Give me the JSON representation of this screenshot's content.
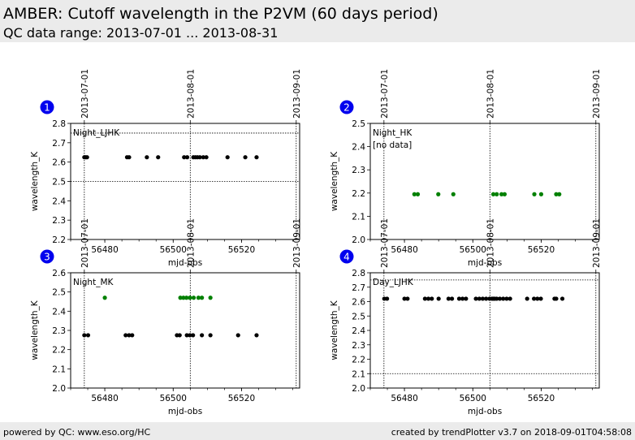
{
  "header": {
    "title": "AMBER: Cutoff wavelength in the P2VM (60 days period)",
    "subtitle": "QC data range: 2013-07-01 ... 2013-08-31"
  },
  "footer": {
    "left": "powered by QC: www.eso.org/HC",
    "right": "created by trendPlotter v3.7 on 2018-09-01T04:58:08"
  },
  "colors": {
    "black_series": "#000000",
    "green_series": "#008000",
    "badge": "#0000ee",
    "header_bg": "#ebebeb"
  },
  "chart_data": [
    {
      "type": "scatter",
      "badge": "1",
      "label": "Night_LJHK",
      "note": "",
      "xlabel": "mjd-obs",
      "ylabel": "wavelength_K",
      "xlim": [
        56470,
        56537
      ],
      "ylim": [
        2.2,
        2.8
      ],
      "xticks": [
        56480,
        56500,
        56520
      ],
      "yticks": [
        2.2,
        2.3,
        2.4,
        2.5,
        2.6,
        2.7,
        2.8
      ],
      "ref_lines": [
        2.5,
        2.75
      ],
      "date_ticks": [
        {
          "mjd": 56474,
          "label": "2013-07-01"
        },
        {
          "mjd": 56505,
          "label": "2013-08-01"
        },
        {
          "mjd": 56536,
          "label": "2013-09-01"
        }
      ],
      "series": [
        {
          "color": "#000000",
          "x": [
            56474.0,
            56474.4,
            56474.8,
            56486.5,
            56487.1,
            56492.3,
            56495.6,
            56503.2,
            56504.1,
            56505.9,
            56506.5,
            56507.1,
            56507.8,
            56508.8,
            56509.7,
            56515.9,
            56521.1,
            56524.4
          ],
          "y": [
            2.625,
            2.625,
            2.625,
            2.625,
            2.625,
            2.625,
            2.625,
            2.625,
            2.625,
            2.625,
            2.625,
            2.625,
            2.625,
            2.625,
            2.625,
            2.625,
            2.625,
            2.625
          ]
        }
      ]
    },
    {
      "type": "scatter",
      "badge": "2",
      "label": "Night_HK",
      "note": "[no data]",
      "xlabel": "mjd-obs",
      "ylabel": "wavelength_K",
      "xlim": [
        56470,
        56537
      ],
      "ylim": [
        2.0,
        2.5
      ],
      "xticks": [
        56480,
        56500,
        56520
      ],
      "yticks": [
        2.0,
        2.1,
        2.2,
        2.3,
        2.4,
        2.5
      ],
      "ref_lines": [],
      "date_ticks": [
        {
          "mjd": 56474,
          "label": "2013-07-01"
        },
        {
          "mjd": 56505,
          "label": "2013-08-01"
        },
        {
          "mjd": 56536,
          "label": "2013-09-01"
        }
      ],
      "series": [
        {
          "color": "#008000",
          "x": [
            56482.9,
            56483.9,
            56489.9,
            56494.3,
            56506.0,
            56507.0,
            56508.4,
            56509.3,
            56518.0,
            56520.0,
            56524.4,
            56525.3
          ],
          "y": [
            2.195,
            2.195,
            2.195,
            2.195,
            2.195,
            2.195,
            2.195,
            2.195,
            2.195,
            2.195,
            2.195,
            2.195
          ]
        }
      ]
    },
    {
      "type": "scatter",
      "badge": "3",
      "label": "Night_MK",
      "note": "",
      "xlabel": "mjd-obs",
      "ylabel": "wavelength_K",
      "xlim": [
        56470,
        56537
      ],
      "ylim": [
        2.0,
        2.6
      ],
      "xticks": [
        56480,
        56500,
        56520
      ],
      "yticks": [
        2.0,
        2.1,
        2.2,
        2.3,
        2.4,
        2.5,
        2.6
      ],
      "ref_lines": [],
      "date_ticks": [
        {
          "mjd": 56474,
          "label": "2013-07-01"
        },
        {
          "mjd": 56505,
          "label": "2013-08-01"
        },
        {
          "mjd": 56536,
          "label": "2013-09-01"
        }
      ],
      "series": [
        {
          "color": "#000000",
          "x": [
            56474.0,
            56475.1,
            56486.1,
            56487.1,
            56488.0,
            56501.1,
            56501.9,
            56504.0,
            56504.9,
            56505.8,
            56508.4,
            56510.9,
            56519.0,
            56524.4
          ],
          "y": [
            2.275,
            2.275,
            2.275,
            2.275,
            2.275,
            2.275,
            2.275,
            2.275,
            2.275,
            2.275,
            2.275,
            2.275,
            2.275,
            2.275
          ]
        },
        {
          "color": "#008000",
          "x": [
            56480.0,
            56502.1,
            56503.0,
            56503.9,
            56504.9,
            56506.0,
            56507.4,
            56508.4,
            56510.9
          ],
          "y": [
            2.47,
            2.47,
            2.47,
            2.47,
            2.47,
            2.47,
            2.47,
            2.47,
            2.47
          ]
        }
      ]
    },
    {
      "type": "scatter",
      "badge": "4",
      "label": "Day_LJHK",
      "note": "",
      "xlabel": "mjd-obs",
      "ylabel": "wavelength_K",
      "xlim": [
        56470,
        56537
      ],
      "ylim": [
        2.0,
        2.8
      ],
      "xticks": [
        56480,
        56500,
        56520
      ],
      "yticks": [
        2.0,
        2.1,
        2.2,
        2.3,
        2.4,
        2.5,
        2.6,
        2.7,
        2.8
      ],
      "ref_lines": [
        2.1,
        2.75
      ],
      "date_ticks": [
        {
          "mjd": 56474,
          "label": "2013-07-01"
        },
        {
          "mjd": 56505,
          "label": "2013-08-01"
        },
        {
          "mjd": 56536,
          "label": "2013-09-01"
        }
      ],
      "series": [
        {
          "color": "#000000",
          "x": [
            56474.1,
            56474.9,
            56480.0,
            56480.9,
            56486.0,
            56487.0,
            56488.0,
            56490.0,
            56492.9,
            56493.9,
            56496.0,
            56497.0,
            56498.0,
            56500.9,
            56501.9,
            56502.9,
            56503.9,
            56504.9,
            56505.6,
            56506.0,
            56506.4,
            56507.0,
            56507.9,
            56508.9,
            56509.9,
            56510.9,
            56515.9,
            56517.9,
            56518.9,
            56519.9,
            56523.9,
            56524.4,
            56526.2
          ],
          "y": [
            2.62,
            2.62,
            2.62,
            2.62,
            2.62,
            2.62,
            2.62,
            2.62,
            2.62,
            2.62,
            2.62,
            2.62,
            2.62,
            2.62,
            2.62,
            2.62,
            2.62,
            2.62,
            2.62,
            2.62,
            2.62,
            2.62,
            2.62,
            2.62,
            2.62,
            2.62,
            2.62,
            2.62,
            2.62,
            2.62,
            2.62,
            2.62,
            2.62
          ]
        }
      ]
    }
  ]
}
